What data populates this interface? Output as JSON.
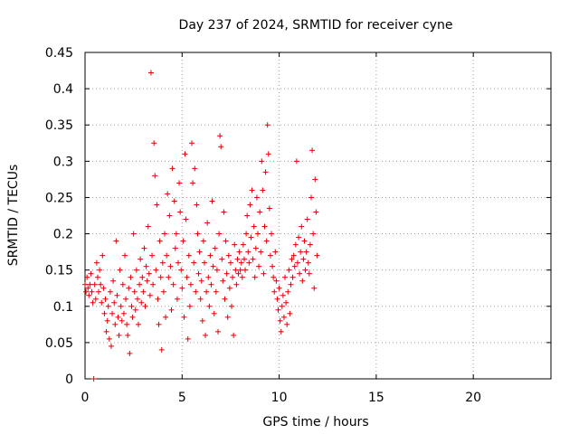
{
  "chart_data": {
    "type": "scatter",
    "title": "Day 237 of 2024, SRMTID for receiver cyne",
    "xlabel": "GPS time / hours",
    "ylabel": "SRMTID / TECUs",
    "xlim": [
      0,
      24
    ],
    "ylim": [
      0,
      0.45
    ],
    "xticks": [
      "0",
      "5",
      "10",
      "15",
      "20"
    ],
    "yticks": [
      "0",
      "0.05",
      "0.1",
      "0.15",
      "0.2",
      "0.25",
      "0.3",
      "0.35",
      "0.4",
      "0.45"
    ],
    "grid": true,
    "marker": "+",
    "color": "#e00000",
    "series": [
      {
        "name": "SRMTID",
        "points": [
          [
            0.0,
            0.13
          ],
          [
            0.05,
            0.12
          ],
          [
            0.1,
            0.14
          ],
          [
            0.15,
            0.125
          ],
          [
            0.2,
            0.115
          ],
          [
            0.25,
            0.13
          ],
          [
            0.3,
            0.145
          ],
          [
            0.35,
            0.12
          ],
          [
            0.4,
            0.105
          ],
          [
            0.45,
            0.0
          ],
          [
            0.5,
            0.13
          ],
          [
            0.55,
            0.11
          ],
          [
            0.6,
            0.16
          ],
          [
            0.65,
            0.14
          ],
          [
            0.7,
            0.12
          ],
          [
            0.75,
            0.15
          ],
          [
            0.8,
            0.13
          ],
          [
            0.85,
            0.105
          ],
          [
            0.9,
            0.17
          ],
          [
            0.95,
            0.125
          ],
          [
            1.0,
            0.09
          ],
          [
            1.05,
            0.11
          ],
          [
            1.1,
            0.065
          ],
          [
            1.15,
            0.08
          ],
          [
            1.2,
            0.1
          ],
          [
            1.25,
            0.055
          ],
          [
            1.3,
            0.12
          ],
          [
            1.35,
            0.045
          ],
          [
            1.4,
            0.09
          ],
          [
            1.45,
            0.135
          ],
          [
            1.5,
            0.105
          ],
          [
            1.55,
            0.075
          ],
          [
            1.6,
            0.19
          ],
          [
            1.65,
            0.115
          ],
          [
            1.7,
            0.085
          ],
          [
            1.75,
            0.06
          ],
          [
            1.8,
            0.15
          ],
          [
            1.85,
            0.1
          ],
          [
            1.9,
            0.08
          ],
          [
            1.95,
            0.13
          ],
          [
            2.0,
            0.09
          ],
          [
            2.05,
            0.17
          ],
          [
            2.1,
            0.11
          ],
          [
            2.15,
            0.075
          ],
          [
            2.2,
            0.06
          ],
          [
            2.25,
            0.125
          ],
          [
            2.3,
            0.035
          ],
          [
            2.35,
            0.14
          ],
          [
            2.4,
            0.1
          ],
          [
            2.45,
            0.085
          ],
          [
            2.5,
            0.2
          ],
          [
            2.55,
            0.12
          ],
          [
            2.6,
            0.095
          ],
          [
            2.65,
            0.15
          ],
          [
            2.7,
            0.11
          ],
          [
            2.75,
            0.075
          ],
          [
            2.8,
            0.13
          ],
          [
            2.85,
            0.165
          ],
          [
            2.9,
            0.105
          ],
          [
            2.95,
            0.14
          ],
          [
            3.0,
            0.12
          ],
          [
            3.05,
            0.18
          ],
          [
            3.1,
            0.1
          ],
          [
            3.15,
            0.155
          ],
          [
            3.2,
            0.135
          ],
          [
            3.25,
            0.21
          ],
          [
            3.3,
            0.145
          ],
          [
            3.35,
            0.115
          ],
          [
            3.4,
            0.422
          ],
          [
            3.45,
            0.17
          ],
          [
            3.5,
            0.13
          ],
          [
            3.55,
            0.325
          ],
          [
            3.6,
            0.28
          ],
          [
            3.65,
            0.15
          ],
          [
            3.7,
            0.24
          ],
          [
            3.75,
            0.11
          ],
          [
            3.8,
            0.075
          ],
          [
            3.85,
            0.19
          ],
          [
            3.9,
            0.14
          ],
          [
            3.95,
            0.04
          ],
          [
            4.0,
            0.16
          ],
          [
            4.05,
            0.12
          ],
          [
            4.1,
            0.2
          ],
          [
            4.15,
            0.085
          ],
          [
            4.2,
            0.17
          ],
          [
            4.25,
            0.255
          ],
          [
            4.3,
            0.14
          ],
          [
            4.35,
            0.225
          ],
          [
            4.4,
            0.155
          ],
          [
            4.45,
            0.095
          ],
          [
            4.5,
            0.29
          ],
          [
            4.55,
            0.13
          ],
          [
            4.6,
            0.245
          ],
          [
            4.65,
            0.18
          ],
          [
            4.7,
            0.2
          ],
          [
            4.75,
            0.11
          ],
          [
            4.8,
            0.16
          ],
          [
            4.85,
            0.27
          ],
          [
            4.9,
            0.23
          ],
          [
            4.95,
            0.15
          ],
          [
            5.0,
            0.125
          ],
          [
            5.05,
            0.19
          ],
          [
            5.1,
            0.085
          ],
          [
            5.15,
            0.31
          ],
          [
            5.2,
            0.22
          ],
          [
            5.25,
            0.14
          ],
          [
            5.3,
            0.055
          ],
          [
            5.35,
            0.17
          ],
          [
            5.4,
            0.1
          ],
          [
            5.45,
            0.13
          ],
          [
            5.5,
            0.325
          ],
          [
            5.55,
            0.27
          ],
          [
            5.6,
            0.16
          ],
          [
            5.65,
            0.29
          ],
          [
            5.7,
            0.12
          ],
          [
            5.75,
            0.24
          ],
          [
            5.8,
            0.2
          ],
          [
            5.85,
            0.145
          ],
          [
            5.9,
            0.175
          ],
          [
            5.95,
            0.11
          ],
          [
            6.0,
            0.135
          ],
          [
            6.05,
            0.08
          ],
          [
            6.1,
            0.19
          ],
          [
            6.15,
            0.16
          ],
          [
            6.2,
            0.06
          ],
          [
            6.25,
            0.12
          ],
          [
            6.3,
            0.215
          ],
          [
            6.35,
            0.14
          ],
          [
            6.4,
            0.1
          ],
          [
            6.45,
            0.17
          ],
          [
            6.5,
            0.13
          ],
          [
            6.55,
            0.245
          ],
          [
            6.6,
            0.155
          ],
          [
            6.65,
            0.09
          ],
          [
            6.7,
            0.18
          ],
          [
            6.75,
            0.12
          ],
          [
            6.8,
            0.15
          ],
          [
            6.85,
            0.065
          ],
          [
            6.9,
            0.2
          ],
          [
            6.95,
            0.335
          ],
          [
            7.0,
            0.32
          ],
          [
            7.05,
            0.165
          ],
          [
            7.1,
            0.135
          ],
          [
            7.15,
            0.23
          ],
          [
            7.2,
            0.11
          ],
          [
            7.25,
            0.19
          ],
          [
            7.3,
            0.145
          ],
          [
            7.35,
            0.085
          ],
          [
            7.4,
            0.17
          ],
          [
            7.45,
            0.125
          ],
          [
            7.5,
            0.16
          ],
          [
            7.55,
            0.1
          ],
          [
            7.6,
            0.14
          ],
          [
            7.65,
            0.06
          ],
          [
            7.7,
            0.185
          ],
          [
            7.75,
            0.15
          ],
          [
            7.8,
            0.13
          ],
          [
            7.85,
            0.165
          ],
          [
            7.9,
            0.145
          ],
          [
            7.95,
            0.175
          ],
          [
            8.0,
            0.15
          ],
          [
            8.05,
            0.16
          ],
          [
            8.1,
            0.14
          ],
          [
            8.15,
            0.185
          ],
          [
            8.2,
            0.165
          ],
          [
            8.25,
            0.15
          ],
          [
            8.3,
            0.2
          ],
          [
            8.35,
            0.225
          ],
          [
            8.4,
            0.175
          ],
          [
            8.45,
            0.16
          ],
          [
            8.5,
            0.24
          ],
          [
            8.55,
            0.195
          ],
          [
            8.6,
            0.26
          ],
          [
            8.65,
            0.165
          ],
          [
            8.7,
            0.21
          ],
          [
            8.75,
            0.14
          ],
          [
            8.8,
            0.18
          ],
          [
            8.85,
            0.25
          ],
          [
            8.9,
            0.2
          ],
          [
            8.95,
            0.155
          ],
          [
            9.0,
            0.23
          ],
          [
            9.05,
            0.175
          ],
          [
            9.1,
            0.3
          ],
          [
            9.15,
            0.26
          ],
          [
            9.2,
            0.145
          ],
          [
            9.25,
            0.21
          ],
          [
            9.3,
            0.285
          ],
          [
            9.35,
            0.19
          ],
          [
            9.4,
            0.35
          ],
          [
            9.45,
            0.31
          ],
          [
            9.5,
            0.235
          ],
          [
            9.55,
            0.17
          ],
          [
            9.6,
            0.2
          ],
          [
            9.65,
            0.155
          ],
          [
            9.7,
            0.14
          ],
          [
            9.75,
            0.12
          ],
          [
            9.8,
            0.175
          ],
          [
            9.85,
            0.135
          ],
          [
            9.9,
            0.11
          ],
          [
            9.95,
            0.095
          ],
          [
            10.0,
            0.125
          ],
          [
            10.05,
            0.08
          ],
          [
            10.1,
            0.065
          ],
          [
            10.15,
            0.1
          ],
          [
            10.2,
            0.115
          ],
          [
            10.25,
            0.085
          ],
          [
            10.3,
            0.14
          ],
          [
            10.35,
            0.105
          ],
          [
            10.4,
            0.075
          ],
          [
            10.45,
            0.12
          ],
          [
            10.5,
            0.15
          ],
          [
            10.55,
            0.09
          ],
          [
            10.6,
            0.13
          ],
          [
            10.65,
            0.165
          ],
          [
            10.7,
            0.14
          ],
          [
            10.75,
            0.17
          ],
          [
            10.8,
            0.155
          ],
          [
            10.85,
            0.185
          ],
          [
            10.9,
            0.3
          ],
          [
            10.95,
            0.16
          ],
          [
            11.0,
            0.195
          ],
          [
            11.05,
            0.145
          ],
          [
            11.1,
            0.175
          ],
          [
            11.15,
            0.21
          ],
          [
            11.2,
            0.135
          ],
          [
            11.25,
            0.165
          ],
          [
            11.3,
            0.19
          ],
          [
            11.35,
            0.15
          ],
          [
            11.4,
            0.175
          ],
          [
            11.45,
            0.22
          ],
          [
            11.5,
            0.16
          ],
          [
            11.55,
            0.145
          ],
          [
            11.6,
            0.185
          ],
          [
            11.65,
            0.25
          ],
          [
            11.7,
            0.315
          ],
          [
            11.75,
            0.2
          ],
          [
            11.8,
            0.125
          ],
          [
            11.85,
            0.275
          ],
          [
            11.9,
            0.23
          ],
          [
            11.95,
            0.17
          ]
        ]
      }
    ]
  }
}
